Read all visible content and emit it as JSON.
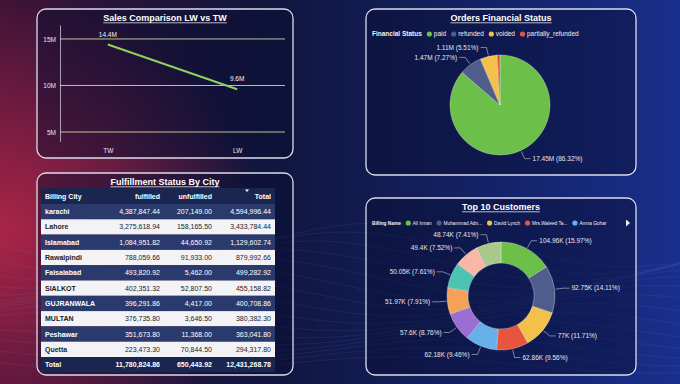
{
  "chart_data": [
    {
      "type": "line",
      "title": "Sales Comparison LW vs TW",
      "categories": [
        "TW",
        "LW"
      ],
      "values": [
        14400000,
        9600000
      ],
      "value_labels": [
        "14.4M",
        "9.6M"
      ],
      "color": "#8fd15f",
      "ylim": [
        4000000,
        16500000
      ],
      "yticks": [
        {
          "value": 5000000,
          "label": "5M"
        },
        {
          "value": 10000000,
          "label": "10M"
        },
        {
          "value": 15000000,
          "label": "15M"
        }
      ],
      "grid": true,
      "data_labels": true
    },
    {
      "type": "pie",
      "title": "Orders Financial Status",
      "legend_title": "Financial Status",
      "categories": [
        "paid",
        "refunded",
        "voided",
        "partially_refunded"
      ],
      "values": [
        17450000,
        1470000,
        1110000,
        185500
      ],
      "value_labels": [
        "17.45M (86.32%)",
        "1.47M (7.27%)",
        "1.11M (5.51%)",
        null
      ],
      "colors": [
        "#6cc04a",
        "#4f5d8c",
        "#f2c14b",
        "#e8553f"
      ],
      "legend": "top",
      "data_labels": true
    },
    {
      "type": "table",
      "title": "Fulfillment Status By City",
      "columns": [
        "Billing City",
        "fulfilled",
        "unfulfilled",
        "Total"
      ],
      "rows": [
        [
          "karachi",
          "4,387,847.44",
          "207,149.00",
          "4,594,996.44"
        ],
        [
          "Lahore",
          "3,275,618.94",
          "158,165.50",
          "3,433,784.44"
        ],
        [
          "Islamabad",
          "1,084,951.82",
          "44,650.92",
          "1,129,602.74"
        ],
        [
          "Rawalpindi",
          "788,059.66",
          "91,933.00",
          "879,992.66"
        ],
        [
          "Faisalabad",
          "493,820.92",
          "5,462.00",
          "499,282.92"
        ],
        [
          "SIALKOT",
          "402,351.32",
          "52,807.50",
          "455,158.82"
        ],
        [
          "GUJRANWALA",
          "396,291.86",
          "4,417.00",
          "400,708.86"
        ],
        [
          "MULTAN",
          "376,735.80",
          "3,646.50",
          "380,382.30"
        ],
        [
          "Peshawar",
          "351,673.80",
          "11,368.00",
          "363,041.80"
        ],
        [
          "Quetta",
          "223,473.30",
          "70,844.50",
          "294,317.80"
        ]
      ],
      "total": [
        "Total",
        "11,780,824.86",
        "650,443.92",
        "12,431,268.78"
      ]
    },
    {
      "type": "donut",
      "title": "Top 10 Customers",
      "legend_title": "Billing Name",
      "categories": [
        "Ali Imran",
        "Muhammad Adn...",
        "David Lynch",
        "Mrs.Waleed Ta...",
        "Amna Gohar",
        null,
        null,
        null,
        null,
        null
      ],
      "values": [
        104960,
        92750,
        77000,
        62860,
        62180,
        57600,
        51970,
        50050,
        49400,
        48740
      ],
      "value_labels": [
        "104.96K (15.97%)",
        "92.75K (14.11%)",
        "77K (11.71%)",
        "62.86K (9.56%)",
        "62.18K (9.46%)",
        "57.6K (8.76%)",
        "51.97K (7.91%)",
        "50.05K (7.61%)",
        "49.4K (7.52%)",
        "48.74K (7.41%)"
      ],
      "colors": [
        "#6cc04a",
        "#4f5d8c",
        "#f2c14b",
        "#e8553f",
        "#66b2e8",
        "#9b6fd1",
        "#f4a259",
        "#4cc2b3",
        "#f7b8a8",
        "#a8c98a"
      ],
      "legend": "top",
      "data_labels": true
    }
  ]
}
